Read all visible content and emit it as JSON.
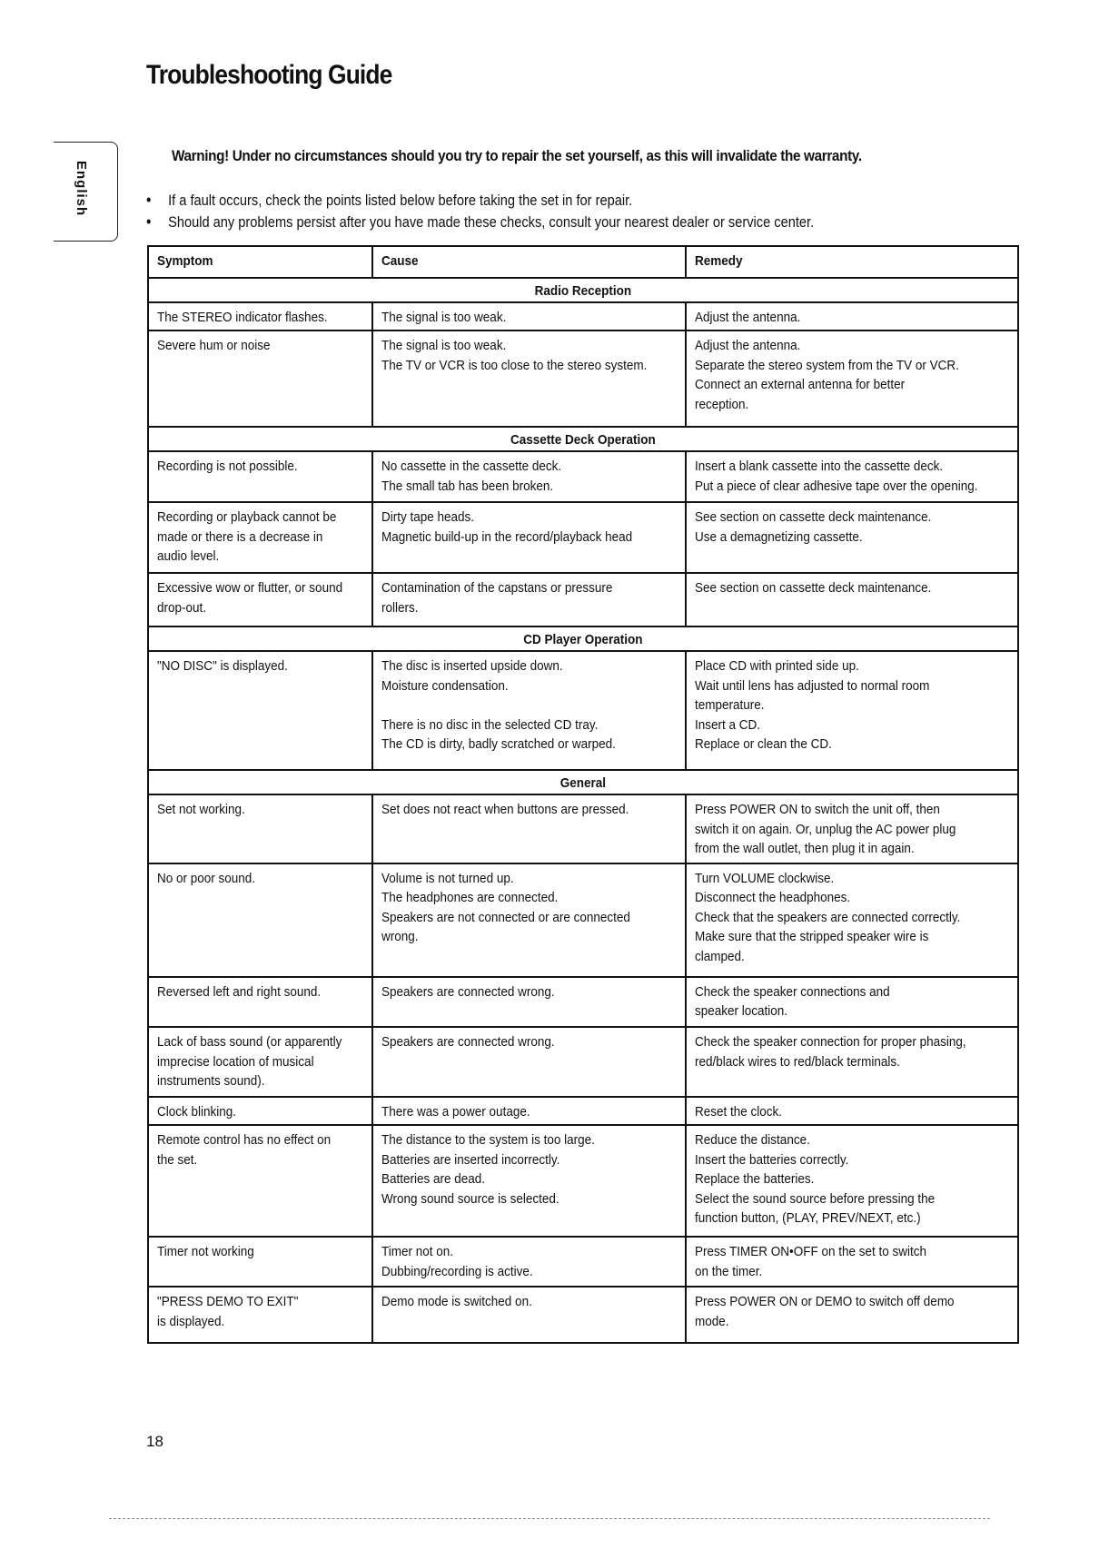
{
  "title": "Troubleshooting Guide",
  "side_tab": "English",
  "warning": "Warning!  Under no circumstances should you try to repair the set yourself, as this will invalidate the warranty.",
  "bullets": [
    "If a fault occurs, check the points listed below before taking the set in for repair.",
    "Should any problems persist after you have made these checks, consult your nearest dealer or service center."
  ],
  "table": {
    "headers": [
      "Symptom",
      "Cause",
      "Remedy"
    ],
    "sections": [
      {
        "title": "Radio Reception",
        "rows": [
          {
            "h": 29,
            "symptom": [
              "The STEREO indicator flashes."
            ],
            "cause": [
              "The signal is too weak."
            ],
            "remedy": [
              "Adjust the antenna."
            ]
          },
          {
            "h": 98,
            "symptom": [
              "Severe hum or noise"
            ],
            "cause": [
              "The signal is too weak.",
              "The TV or VCR is too close to the stereo system."
            ],
            "remedy": [
              "Adjust the antenna.",
              "Separate the stereo system from the TV or VCR.",
              "Connect an external antenna for better",
              "reception."
            ]
          }
        ]
      },
      {
        "title": "Cassette Deck Operation",
        "rows": [
          {
            "h": 52,
            "symptom": [
              "Recording is not possible."
            ],
            "cause": [
              "No cassette in the cassette deck.",
              "The small tab has been broken."
            ],
            "remedy": [
              "Insert a blank cassette into the cassette deck.",
              "Put a piece of clear adhesive tape over the opening."
            ]
          },
          {
            "h": 72,
            "symptom": [
              "Recording or playback cannot be",
              "made or there is a decrease in",
              "audio level."
            ],
            "cause": [
              "Dirty tape heads.",
              "Magnetic build-up in the record/playback head"
            ],
            "remedy": [
              "See section on cassette deck maintenance.",
              "Use a demagnetizing cassette."
            ]
          },
          {
            "h": 55,
            "symptom": [
              "Excessive wow or flutter, or sound",
              "drop-out."
            ],
            "cause": [
              "Contamination of the capstans or pressure",
              "rollers."
            ],
            "remedy": [
              "See section on cassette deck maintenance."
            ]
          }
        ]
      },
      {
        "title": "CD Player Operation",
        "rows": [
          {
            "h": 121,
            "symptom": [
              "\"NO DISC\" is displayed."
            ],
            "cause": [
              "The disc is inserted upside down.",
              "Moisture condensation.",
              "",
              "There is no disc in the selected CD tray.",
              "The CD is dirty, badly scratched or warped."
            ],
            "remedy": [
              "Place CD with printed side up.",
              "Wait until lens has adjusted to normal room",
              "temperature.",
              "Insert a CD.",
              "Replace or clean the CD."
            ]
          }
        ]
      },
      {
        "title": "General",
        "rows": [
          {
            "h": 70,
            "symptom": [
              "Set not working."
            ],
            "cause": [
              "Set does not react when buttons are pressed."
            ],
            "remedy": [
              "Press POWER ON to switch the unit off, then",
              "switch it on again. Or, unplug the AC power plug",
              "from the wall outlet, then plug it in again."
            ]
          },
          {
            "h": 116,
            "symptom": [
              "No or poor sound."
            ],
            "cause": [
              "Volume is not turned up.",
              "The headphones are connected.",
              "Speakers are not connected or are connected",
              "wrong."
            ],
            "remedy": [
              "Turn VOLUME clockwise.",
              "Disconnect the headphones.",
              "Check that the speakers are connected correctly.",
              "Make sure that the stripped speaker wire is",
              "clamped."
            ]
          },
          {
            "h": 51,
            "symptom": [
              "Reversed left and right sound."
            ],
            "cause": [
              "Speakers are connected wrong."
            ],
            "remedy": [
              "Check the speaker connections and",
              "speaker location."
            ]
          },
          {
            "h": 71,
            "symptom": [
              "Lack of bass sound (or apparently",
              "imprecise location of musical",
              "instruments sound)."
            ],
            "cause": [
              "Speakers are connected wrong."
            ],
            "remedy": [
              "Check the speaker connection for proper phasing,",
              "red/black wires to red/black terminals."
            ]
          },
          {
            "h": 29,
            "symptom": [
              "Clock blinking."
            ],
            "cause": [
              "There was a power outage."
            ],
            "remedy": [
              "Reset the clock."
            ]
          },
          {
            "h": 114,
            "symptom": [
              "Remote control has no effect on",
              "the set."
            ],
            "cause": [
              "The distance to the system is too large.",
              "Batteries are inserted incorrectly.",
              "Batteries are dead.",
              "Wrong sound source is selected."
            ],
            "remedy": [
              "Reduce the distance.",
              "Insert the batteries correctly.",
              "Replace the batteries.",
              "Select the sound source before pressing the",
              "function button, (PLAY, PREV/NEXT, etc.)"
            ]
          },
          {
            "h": 51,
            "symptom": [
              "Timer not working"
            ],
            "cause": [
              "Timer not on.",
              "Dubbing/recording is active."
            ],
            "remedy": [
              "Press TIMER ON•OFF on the set to switch",
              "on the timer."
            ]
          },
          {
            "h": 57,
            "symptom": [
              "\"PRESS DEMO TO EXIT\"",
              "is displayed."
            ],
            "cause": [
              "Demo mode is switched on."
            ],
            "remedy": [
              "Press POWER ON or DEMO to switch off demo",
              "mode."
            ]
          }
        ]
      }
    ]
  },
  "page_number": "18"
}
